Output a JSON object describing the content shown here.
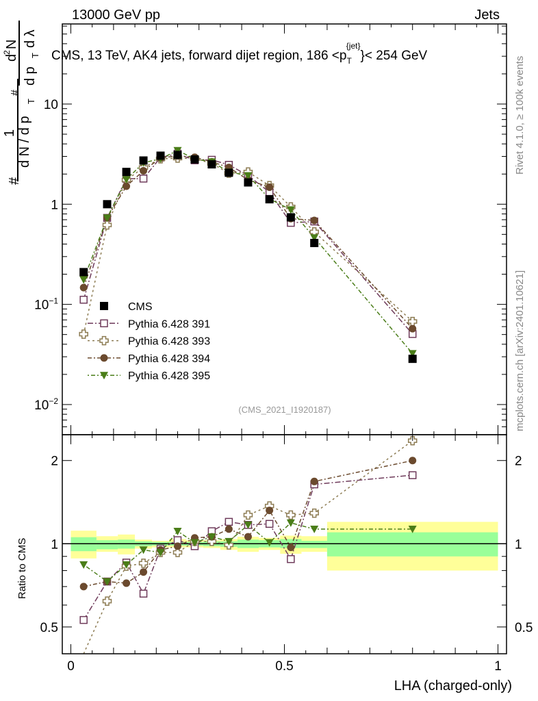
{
  "chart_data": [
    {
      "type": "scatter",
      "panel": "main",
      "header_left": "13000 GeV pp",
      "header_right": "Jets",
      "title": "CMS, 13 TeV, AK4 jets, forward dijet region, 186 <p_T^{jet}< 254 GeV",
      "title_main": "CMS, 13 TeV, AK4 jets, forward dijet region, 186 <p",
      "title_sub": "T",
      "title_sup": "{jet}",
      "title_end": "}< 254 GeV",
      "ylabel": "1/(dN/dp_T) d²N/(dp_T dλ)",
      "ylabel_parts": [
        "#",
        "1",
        "d N / d p",
        "T",
        "#",
        "d",
        "2",
        "N",
        "d p",
        "T",
        "d λ"
      ],
      "yscale": "log",
      "ylim": [
        0.005,
        63
      ],
      "xlim": [
        -0.02,
        1.02
      ],
      "yticks": [
        {
          "v": 0.01,
          "label": "10",
          "exp": "−2"
        },
        {
          "v": 0.1,
          "label": "10",
          "exp": "−1"
        },
        {
          "v": 1,
          "label": "1",
          "exp": ""
        },
        {
          "v": 10,
          "label": "10",
          "exp": ""
        }
      ],
      "watermark": "(CMS_2021_I1920187)",
      "side_text_top": "Rivet 4.1.0, ≥ 100k events",
      "side_text_bottom": "mcplots.cern.ch [arXiv:2401.10621]",
      "x": [
        0.03,
        0.085,
        0.13,
        0.17,
        0.21,
        0.25,
        0.29,
        0.33,
        0.37,
        0.415,
        0.465,
        0.515,
        0.57,
        0.8
      ],
      "bin_edges": [
        0,
        0.06,
        0.11,
        0.15,
        0.19,
        0.23,
        0.27,
        0.31,
        0.35,
        0.39,
        0.44,
        0.49,
        0.54,
        0.6,
        1.0
      ],
      "cms": {
        "name": "CMS",
        "color": "#000000",
        "values": [
          0.21,
          1.0,
          2.1,
          2.73,
          3.05,
          3.1,
          2.8,
          2.5,
          2.06,
          1.65,
          1.12,
          0.74,
          0.41,
          0.0286
        ]
      },
      "legend_position": "lower-left"
    },
    {
      "type": "scatter",
      "panel": "ratio",
      "ylabel": "Ratio to CMS",
      "xlabel": "LHA (charged-only)",
      "yscale": "log",
      "ylim": [
        0.4,
        2.48
      ],
      "yticks": [
        {
          "v": 0.5,
          "label": "0.5"
        },
        {
          "v": 1,
          "label": "1"
        },
        {
          "v": 2,
          "label": "2"
        }
      ],
      "xticks": [
        {
          "v": 0,
          "label": "0"
        },
        {
          "v": 0.5,
          "label": "0.5"
        },
        {
          "v": 1,
          "label": "1"
        }
      ],
      "band_total": {
        "color": "#ffff99",
        "lo": [
          0.885,
          0.935,
          0.915,
          0.96,
          0.97,
          0.97,
          0.97,
          0.965,
          0.95,
          0.935,
          0.95,
          0.92,
          0.935,
          0.8
        ],
        "hi": [
          1.115,
          1.065,
          1.08,
          1.035,
          1.025,
          1.04,
          1.03,
          1.03,
          1.04,
          1.06,
          1.05,
          1.07,
          1.065,
          1.2
        ]
      },
      "band_stat": {
        "color": "#99ff99",
        "lo": [
          0.94,
          0.955,
          0.96,
          0.98,
          0.985,
          0.985,
          0.985,
          0.98,
          0.975,
          0.965,
          0.97,
          0.965,
          0.965,
          0.9
        ],
        "hi": [
          1.056,
          1.03,
          1.035,
          1.02,
          1.015,
          1.015,
          1.015,
          1.02,
          1.02,
          1.035,
          1.03,
          1.04,
          1.025,
          1.1
        ]
      },
      "series": [
        {
          "name": "Pythia 6.428 391",
          "marker": "open-square",
          "color": "#6e3a5a",
          "dash": "8,3,2,3",
          "ratio": [
            0.53,
            0.73,
            0.855,
            0.66,
            0.96,
            1.03,
            0.98,
            1.11,
            1.2,
            1.17,
            1.18,
            0.88,
            1.64,
            1.77
          ]
        },
        {
          "name": "Pythia 6.428 393",
          "marker": "open-cross",
          "color": "#8c7b52",
          "dash": "3,4",
          "ratio": [
            0.24,
            0.62,
            0.83,
            0.85,
            0.93,
            0.93,
            1.02,
            1.02,
            0.99,
            1.27,
            1.37,
            1.27,
            1.29,
            2.36
          ]
        },
        {
          "name": "Pythia 6.428 394",
          "marker": "filled-circle",
          "color": "#6b4a2e",
          "dash": "6,3,2,3",
          "ratio": [
            0.7,
            0.73,
            0.72,
            0.79,
            0.95,
            0.98,
            1.05,
            1.06,
            1.13,
            1.06,
            1.32,
            0.97,
            1.68,
            2.0
          ]
        },
        {
          "name": "Pythia 6.428 395",
          "marker": "filled-triangle-down",
          "color": "#4a7d18",
          "dash": "2,3,6,3",
          "ratio": [
            0.84,
            0.73,
            0.84,
            0.95,
            0.93,
            1.11,
            1.01,
            1.06,
            1.02,
            1.17,
            1.01,
            1.19,
            1.13,
            1.13
          ]
        }
      ]
    }
  ]
}
